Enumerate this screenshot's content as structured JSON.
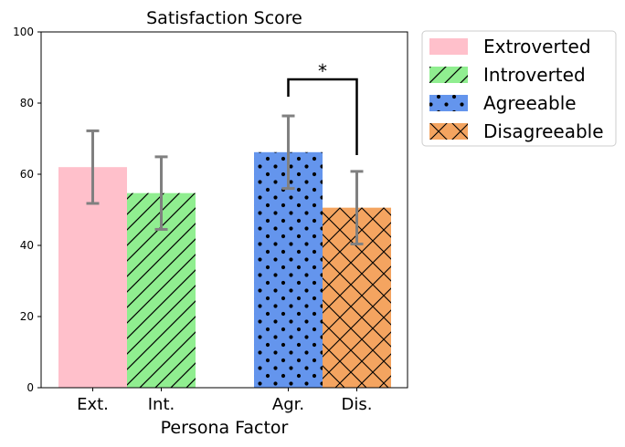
{
  "chart_data": {
    "type": "bar",
    "title": "Satisfaction Score",
    "xlabel": "Persona Factor",
    "ylabel": "",
    "ylim": [
      0,
      100
    ],
    "yticks": [
      0,
      20,
      40,
      60,
      80,
      100
    ],
    "categories": [
      "Ext.",
      "Int.",
      "Agr.",
      "Dis."
    ],
    "series": [
      {
        "name": "Extroverted",
        "category": "Ext.",
        "value": 62,
        "error": 10.2,
        "color": "#ffc0cb",
        "hatch": "none"
      },
      {
        "name": "Introverted",
        "category": "Int.",
        "value": 54.7,
        "error": 10.2,
        "color": "#90ee90",
        "hatch": "diagonal"
      },
      {
        "name": "Agreeable",
        "category": "Agr.",
        "value": 66.2,
        "error": 10.2,
        "color": "#6495ed",
        "hatch": "dots"
      },
      {
        "name": "Disagreeable",
        "category": "Dis.",
        "value": 50.6,
        "error": 10.2,
        "color": "#f4a460",
        "hatch": "crosshatch"
      }
    ],
    "error_bar_color": "#808080",
    "significance": {
      "between": [
        "Agr.",
        "Dis."
      ],
      "label": "*"
    },
    "legend": {
      "placement": "outside-top-right"
    },
    "grid": false
  }
}
